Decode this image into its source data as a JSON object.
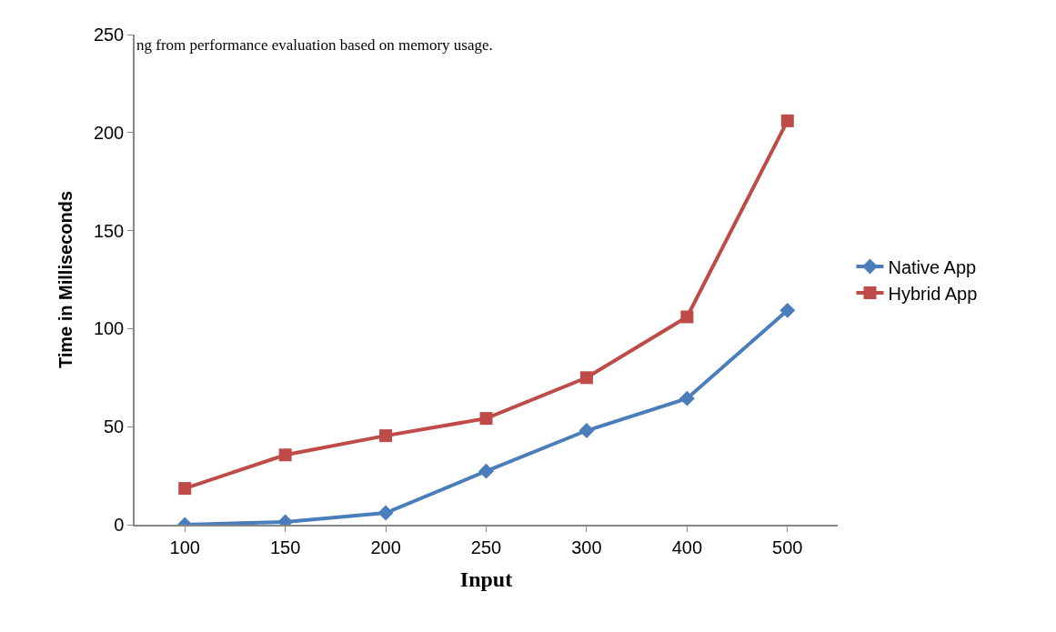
{
  "chart_data": {
    "type": "line",
    "annotations": [
      "ng from performance evaluation based on memory usage."
    ],
    "xlabel": "Input",
    "ylabel": "Time in Milliseconds",
    "categories": [
      "100",
      "150",
      "200",
      "250",
      "300",
      "400",
      "500"
    ],
    "series": [
      {
        "name": "Native App",
        "color": "#4a7ebb",
        "marker": "diamond",
        "values": [
          0,
          1.4,
          6,
          27.3,
          48,
          64.4,
          109.3
        ]
      },
      {
        "name": "Hybrid App",
        "color": "#be4b48",
        "marker": "square",
        "values": [
          18.5,
          35.6,
          45.4,
          54.2,
          75,
          106,
          206
        ]
      }
    ],
    "ylim": [
      0,
      250
    ],
    "yticks": [
      0,
      50,
      100,
      150,
      200,
      250
    ],
    "grid": false,
    "legend": "right",
    "line_style": "solid"
  }
}
